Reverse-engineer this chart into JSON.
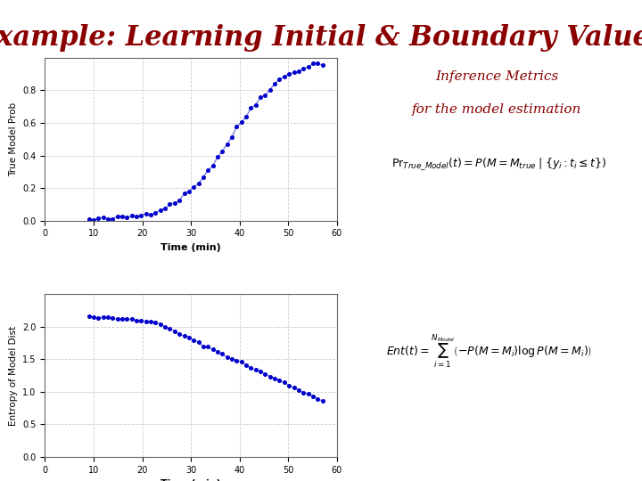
{
  "title": "Example: Learning Initial & Boundary Values",
  "title_color": "#8B0000",
  "title_fontsize": 22,
  "title_fontstyle": "bold",
  "inference_text_line1": "Inference Metrics",
  "inference_text_line2": "for the model estimation",
  "inference_text_color": "#8B0000",
  "inference_text_fontsize": 11,
  "plot1_ylabel": "True Model Prob",
  "plot1_xlabel": "Time (min)",
  "plot1_xlim": [
    0,
    60
  ],
  "plot1_ylim": [
    0,
    1
  ],
  "plot1_yticks": [
    0,
    0.2,
    0.4,
    0.6,
    0.8
  ],
  "plot1_xticks": [
    0,
    10,
    20,
    30,
    40,
    50,
    60
  ],
  "plot2_ylabel": "Entropy of Model Dist",
  "plot2_xlabel": "Time (min)",
  "plot2_xlim": [
    0,
    60
  ],
  "plot2_ylim": [
    0,
    2.5
  ],
  "plot2_yticks": [
    0,
    0.5,
    1,
    1.5,
    2
  ],
  "plot2_xticks": [
    0,
    10,
    20,
    30,
    40,
    50,
    60
  ],
  "dot_color": "#0000CC",
  "dot_size": 8,
  "line_color": "#0000CC",
  "line_width": 1.0,
  "grid_color": "#CCCCCC",
  "grid_style": "--",
  "background_color": "#FFFFFF",
  "formula1": "$\\mathrm{Pr}_{True\\_Model}(t) = P(M = M_{true} \\mid \\{y_i : t_i \\leq t\\})$",
  "formula2": "$Ent(t) = \\sum_{i=1}^{N_{Model}} \\left(-P(M=M_i)\\log P(M=M_i)\\right)$"
}
